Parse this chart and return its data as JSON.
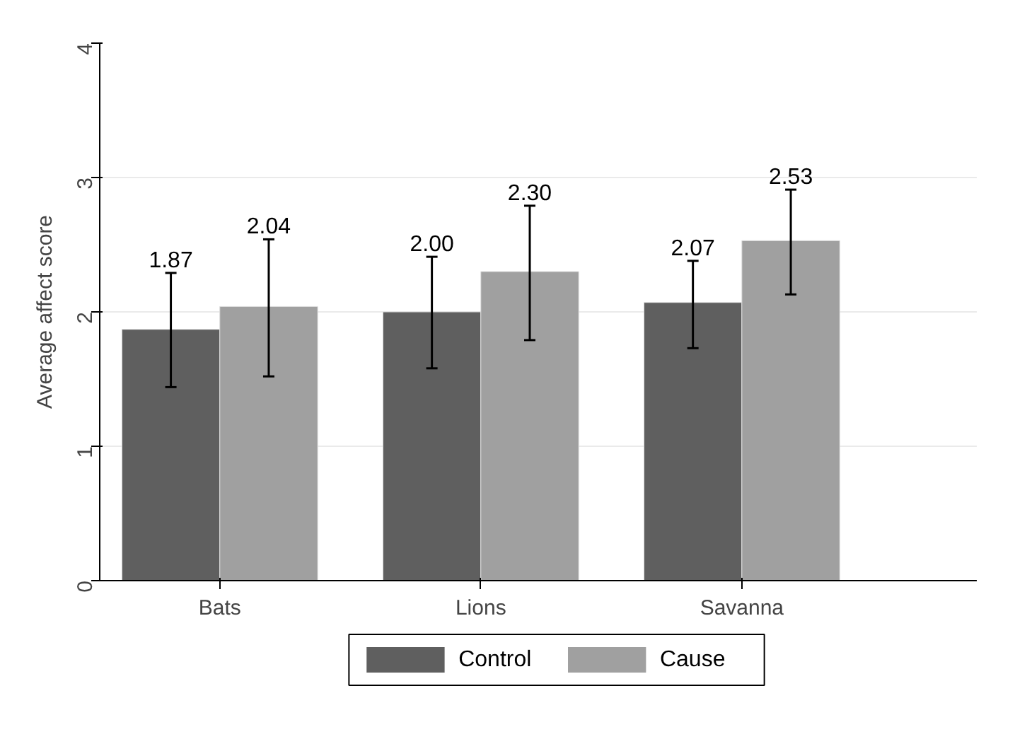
{
  "chart_data": {
    "type": "bar",
    "ylabel": "Average affect score",
    "categories": [
      "Bats",
      "Lions",
      "Savanna"
    ],
    "series": [
      {
        "name": "Control",
        "color": "#5f5f5f",
        "values": [
          1.87,
          2.0,
          2.07
        ],
        "value_labels": [
          "1.87",
          "2.00",
          "2.07"
        ],
        "errors": [
          [
            1.44,
            2.29
          ],
          [
            1.58,
            2.41
          ],
          [
            1.73,
            2.38
          ]
        ]
      },
      {
        "name": "Cause",
        "color": "#a0a0a0",
        "values": [
          2.04,
          2.3,
          2.53
        ],
        "value_labels": [
          "2.04",
          "2.30",
          "2.53"
        ],
        "errors": [
          [
            1.52,
            2.54
          ],
          [
            1.79,
            2.79
          ],
          [
            2.13,
            2.91
          ]
        ]
      }
    ],
    "ylim": [
      0,
      4
    ],
    "yticks": [
      0,
      1,
      2,
      3,
      4
    ],
    "grid": "y",
    "legend": "bottom"
  }
}
